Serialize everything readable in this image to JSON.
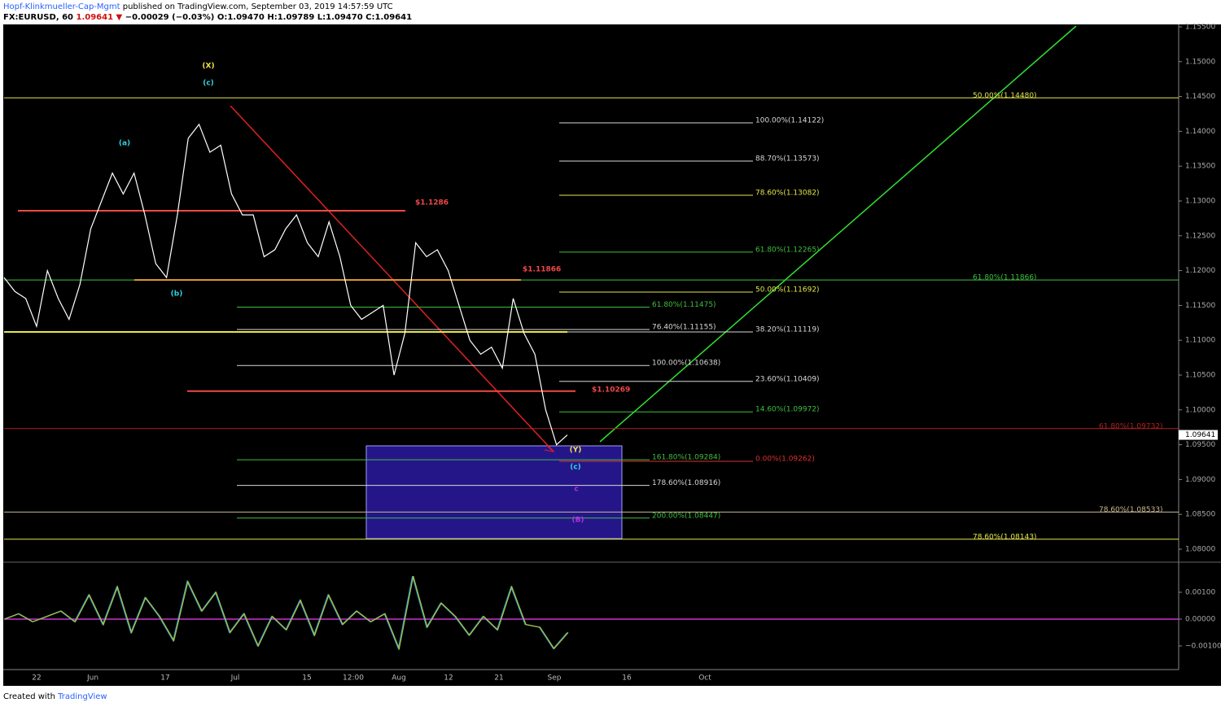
{
  "header": {
    "author": "Hopf-Klinkmueller-Cap-Mgmt",
    "published": " published on TradingView.com, September 03, 2019 14:57:59 UTC",
    "symbol": "FX:EURUSD, 60",
    "last": "1.09641",
    "arrow": "▼",
    "change": "−0.00029 (−0.03%)",
    "ohlc": [
      "O:1.09470",
      "H:1.09789",
      "L:1.09470",
      "C:1.09641"
    ]
  },
  "footer": {
    "created": "Created with",
    "brand": "TradingView"
  },
  "chart_data": {
    "type": "line",
    "color": "#ffffff",
    "values": [
      1.119,
      1.117,
      1.116,
      1.112,
      1.12,
      1.116,
      1.113,
      1.118,
      1.126,
      1.13,
      1.134,
      1.131,
      1.134,
      1.128,
      1.121,
      1.119,
      1.128,
      1.139,
      1.141,
      1.137,
      1.138,
      1.131,
      1.128,
      1.128,
      1.122,
      1.123,
      1.126,
      1.128,
      1.124,
      1.122,
      1.127,
      1.122,
      1.115,
      1.113,
      1.114,
      1.115,
      1.105,
      1.111,
      1.124,
      1.122,
      1.123,
      1.12,
      1.115,
      1.11,
      1.108,
      1.109,
      1.106,
      1.116,
      1.111,
      1.108,
      1.1,
      1.095,
      1.09641
    ],
    "ylim": [
      1.07825,
      1.15535
    ],
    "yticks": [
      {
        "value": 1.155,
        "label": "1.15500"
      },
      {
        "value": 1.15,
        "label": "1.15000"
      },
      {
        "value": 1.145,
        "label": "1.14500"
      },
      {
        "value": 1.14,
        "label": "1.14000"
      },
      {
        "value": 1.135,
        "label": "1.13500"
      },
      {
        "value": 1.13,
        "label": "1.13000"
      },
      {
        "value": 1.125,
        "label": "1.12500"
      },
      {
        "value": 1.12,
        "label": "1.12000"
      },
      {
        "value": 1.115,
        "label": "1.11500"
      },
      {
        "value": 1.11,
        "label": "1.11000"
      },
      {
        "value": 1.105,
        "label": "1.10500"
      },
      {
        "value": 1.1,
        "label": "1.10000"
      },
      {
        "value": 1.095,
        "label": "1.09500"
      },
      {
        "value": 1.09,
        "label": "1.09000"
      },
      {
        "value": 1.085,
        "label": "1.08500"
      },
      {
        "value": 1.08,
        "label": "1.08000"
      }
    ],
    "last_price": {
      "value": 1.09641,
      "label": "1.09641"
    },
    "time_labels": [
      "22",
      "Jun",
      "17",
      "Jul",
      "15",
      "12:00",
      "Aug",
      "12",
      "21",
      "Sep",
      "16",
      "Oct"
    ],
    "levels": [
      {
        "label": "50.00%(1.14480)",
        "value": 1.1448,
        "color": "#e6e64c"
      },
      {
        "label": "100.00%(1.14122)",
        "value": 1.14122,
        "color": "#d8d8d8"
      },
      {
        "label": "88.70%(1.13573)",
        "value": 1.13573,
        "color": "#d8d8d8"
      },
      {
        "label": "78.60%(1.13082)",
        "value": 1.13082,
        "color": "#e6e64c"
      },
      {
        "label": "61.80%(1.12265)",
        "value": 1.12265,
        "color": "#3fbf3f"
      },
      {
        "label": "61.80%(1.11866)",
        "value": 1.11866,
        "color": "#3fbf3f"
      },
      {
        "label": "50.00%(1.11692)",
        "value": 1.11692,
        "color": "#e6e64c"
      },
      {
        "label": "61.80%(1.11475)",
        "value": 1.11475,
        "color": "#3fbf3f"
      },
      {
        "label": "76.40%(1.11155)",
        "value": 1.11155,
        "color": "#d8d8d8"
      },
      {
        "label": "38.20%(1.11119)",
        "value": 1.11119,
        "color": "#d8d8d8"
      },
      {
        "label": "100.00%(1.10638)",
        "value": 1.10638,
        "color": "#d8d8d8"
      },
      {
        "label": "23.60%(1.10409)",
        "value": 1.10409,
        "color": "#d8d8d8"
      },
      {
        "label": "14.60%(1.09972)",
        "value": 1.09972,
        "color": "#3fbf3f"
      },
      {
        "label": "61.80%(1.09732)",
        "value": 1.09732,
        "color": "#b02020"
      },
      {
        "label": "161.80%(1.09284)",
        "value": 1.09284,
        "color": "#3fbf3f"
      },
      {
        "label": "0.00%(1.09262)",
        "value": 1.09262,
        "color": "#e03030"
      },
      {
        "label": "178.60%(1.08916)",
        "value": 1.08916,
        "color": "#d8d8d8"
      },
      {
        "label": "78.60%(1.08533)",
        "value": 1.08533,
        "color": "#c8b890"
      },
      {
        "label": "200.00%(1.08447)",
        "value": 1.08447,
        "color": "#3fbf3f"
      },
      {
        "label": "78.60%(1.08143)",
        "value": 1.08143,
        "color": "#e6e64c"
      }
    ],
    "price_marks": [
      {
        "label": "$1.1286",
        "value": 1.1286,
        "color": "#f04848"
      },
      {
        "label": "$1.11866",
        "value": 1.11866,
        "color": "#f04848"
      },
      {
        "label": "$1.10269",
        "value": 1.10269,
        "color": "#f04848"
      }
    ],
    "waves": [
      {
        "label": "(X)",
        "color": "#f0e040"
      },
      {
        "label": "(c)",
        "color": "#30d0e0"
      },
      {
        "label": "(a)",
        "color": "#30d0e0"
      },
      {
        "label": "(b)",
        "color": "#30d0e0"
      },
      {
        "label": "(Y)",
        "color": "#f0e040"
      },
      {
        "label": "(c)",
        "color": "#30d0e0"
      },
      {
        "label": "c",
        "color": "#b030e0"
      },
      {
        "label": "(B)",
        "color": "#b030e0"
      }
    ],
    "oscillator": {
      "colors": [
        "#2fa0e0",
        "#b0c030"
      ],
      "zero_color": "#d030d0",
      "values": [
        0,
        0.0002,
        -0.0001,
        0.0001,
        0.0003,
        -0.0001,
        0.0009,
        -0.0002,
        0.0012,
        -0.0005,
        0.0008,
        0.0001,
        -0.0008,
        0.0014,
        0.0003,
        0.001,
        -0.0005,
        0.0002,
        -0.001,
        0.0001,
        -0.0004,
        0.0007,
        -0.0006,
        0.0009,
        -0.0002,
        0.0003,
        -0.0001,
        0.0002,
        -0.0011,
        0.0016,
        -0.0003,
        0.0006,
        0.0001,
        -0.0006,
        0.0001,
        -0.0004,
        0.0012,
        -0.0002,
        -0.0003,
        -0.0011,
        -0.0005
      ],
      "ylim": [
        -0.00185,
        0.00209
      ],
      "yticks": [
        {
          "value": 0.001,
          "label": "0.00100"
        },
        {
          "value": 0,
          "label": "0.00000"
        },
        {
          "value": -0.001,
          "label": "−0.00100"
        }
      ]
    }
  }
}
